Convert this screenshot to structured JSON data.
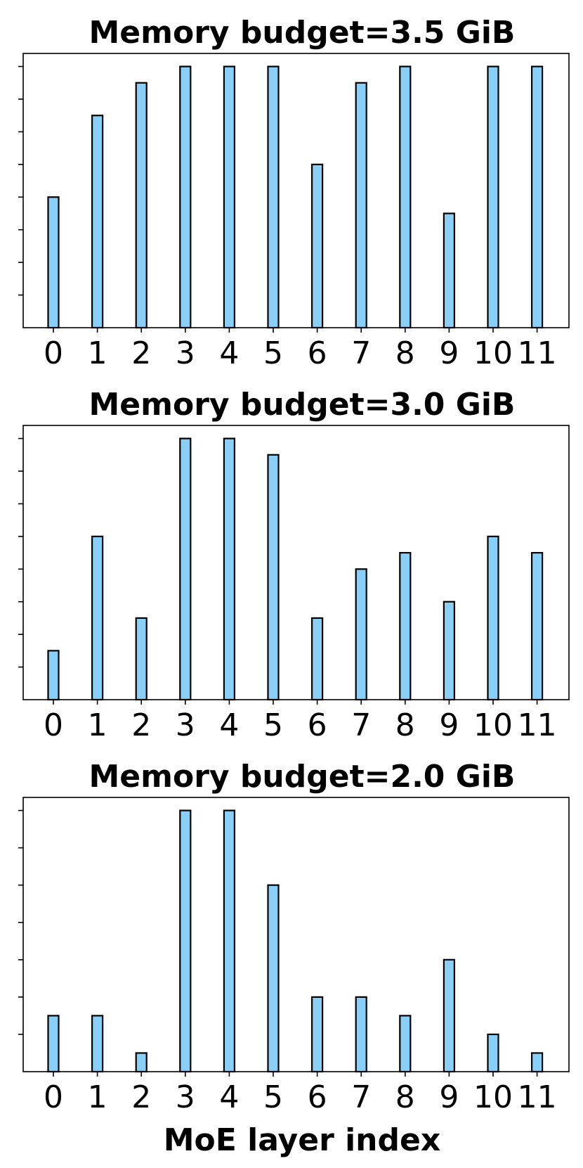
{
  "chart_data": [
    {
      "type": "bar",
      "title": "Memory budget=3.5 GiB",
      "categories": [
        "0",
        "1",
        "2",
        "3",
        "4",
        "5",
        "6",
        "7",
        "8",
        "9",
        "10",
        "11"
      ],
      "values": [
        4,
        6.5,
        7.5,
        8,
        8,
        8,
        5,
        7.5,
        8,
        3.5,
        8,
        8
      ],
      "ylim": [
        0,
        8.4
      ],
      "yticks": [
        1,
        2,
        3,
        4,
        5,
        6,
        7,
        8
      ],
      "ytick_labels_visible": false,
      "bar_color": "#89CFF8",
      "xlabel": ""
    },
    {
      "type": "bar",
      "title": "Memory budget=3.0 GiB",
      "categories": [
        "0",
        "1",
        "2",
        "3",
        "4",
        "5",
        "6",
        "7",
        "8",
        "9",
        "10",
        "11"
      ],
      "values": [
        1.5,
        5,
        2.5,
        8,
        8,
        7.5,
        2.5,
        4,
        4.5,
        3,
        5,
        4.5
      ],
      "ylim": [
        0,
        8.4
      ],
      "yticks": [
        1,
        2,
        3,
        4,
        5,
        6,
        7,
        8
      ],
      "ytick_labels_visible": false,
      "bar_color": "#89CFF8",
      "xlabel": ""
    },
    {
      "type": "bar",
      "title": "Memory budget=2.0 GiB",
      "categories": [
        "0",
        "1",
        "2",
        "3",
        "4",
        "5",
        "6",
        "7",
        "8",
        "9",
        "10",
        "11"
      ],
      "values": [
        1.5,
        1.5,
        0.5,
        7,
        7,
        5,
        2,
        2,
        1.5,
        3,
        1,
        0.5
      ],
      "ylim": [
        0,
        7.35
      ],
      "yticks": [
        1,
        2,
        3,
        4,
        5,
        6,
        7
      ],
      "ytick_labels_visible": false,
      "bar_color": "#89CFF8",
      "xlabel": "MoE layer index"
    }
  ]
}
